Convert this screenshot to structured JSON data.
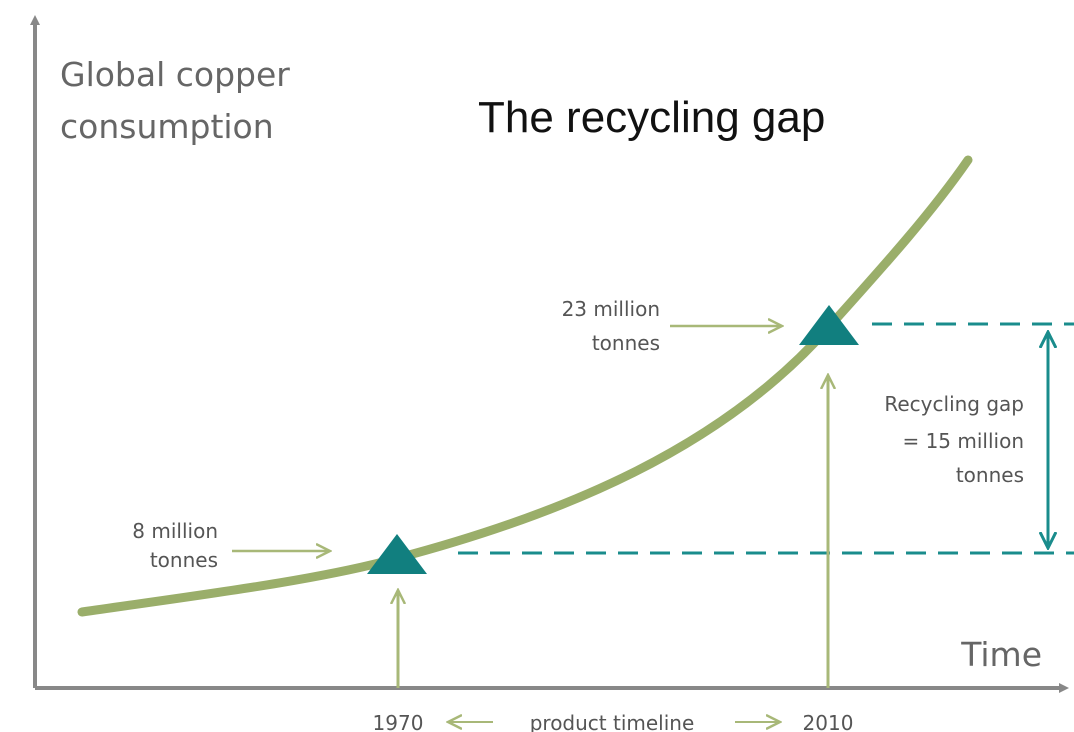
{
  "title": "The recycling gap",
  "y_axis_label": [
    "Global copper",
    "consumption"
  ],
  "x_axis_label": "Time",
  "annotations": {
    "upper": [
      "23 million",
      "tonnes"
    ],
    "lower": [
      "8 million",
      "tonnes"
    ],
    "gap": [
      "Recycling gap",
      "= 15 million",
      "tonnes"
    ]
  },
  "timeline": {
    "start": "1970",
    "label": "product timeline",
    "end": "2010"
  }
}
